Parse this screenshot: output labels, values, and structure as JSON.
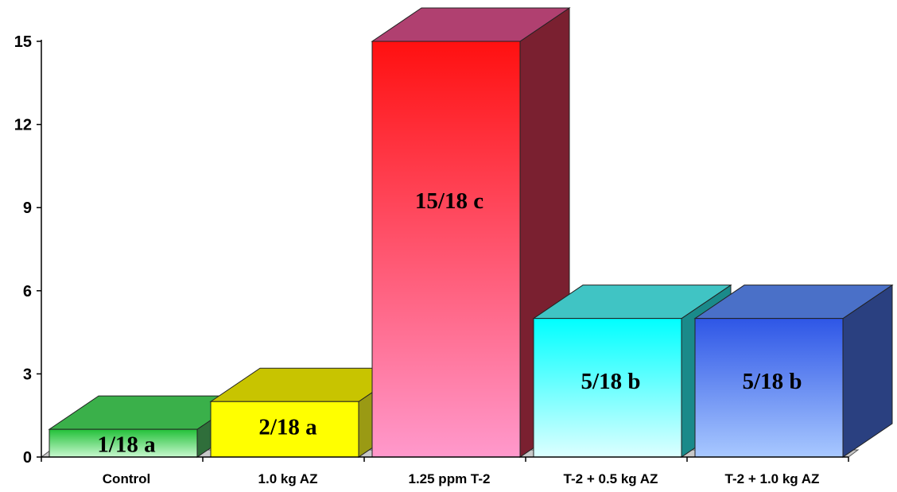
{
  "chart_data": {
    "type": "bar",
    "title": "",
    "xlabel": "",
    "ylabel": "",
    "ylim": [
      0,
      15
    ],
    "yticks": [
      0,
      3,
      6,
      9,
      12,
      15
    ],
    "ytick_labels": [
      "0",
      "3",
      "6",
      "9",
      "12",
      "15"
    ],
    "grid": false,
    "legend": "none",
    "three_d": true,
    "categories": [
      "Control",
      "1.0 kg AZ",
      "1.25 ppm  T-2",
      "T-2 + 0.5 kg AZ",
      "T-2 + 1.0 kg AZ"
    ],
    "values": [
      1,
      2,
      15,
      5,
      5
    ],
    "data_labels": [
      "1/18 a",
      "2/18 a",
      "15/18 c",
      "5/18 b",
      "5/18 b"
    ],
    "bar_colors": [
      {
        "top": "#22c038",
        "bottom": "#c8f8cf",
        "side": "#2f6e3a",
        "cap": "#3ab04a"
      },
      {
        "top": "#ffff00",
        "bottom": "#ffff00",
        "side": "#9a9a14",
        "cap": "#c8c400"
      },
      {
        "top": "#ff1010",
        "bottom": "#ff99cc",
        "side": "#7a2030",
        "cap": "#b04070"
      },
      {
        "top": "#00ffff",
        "bottom": "#ddffff",
        "side": "#1a8a8a",
        "cap": "#40c4c4"
      },
      {
        "top": "#2e56e6",
        "bottom": "#a8c8ff",
        "side": "#2a4080",
        "cap": "#4a70c8"
      }
    ]
  }
}
